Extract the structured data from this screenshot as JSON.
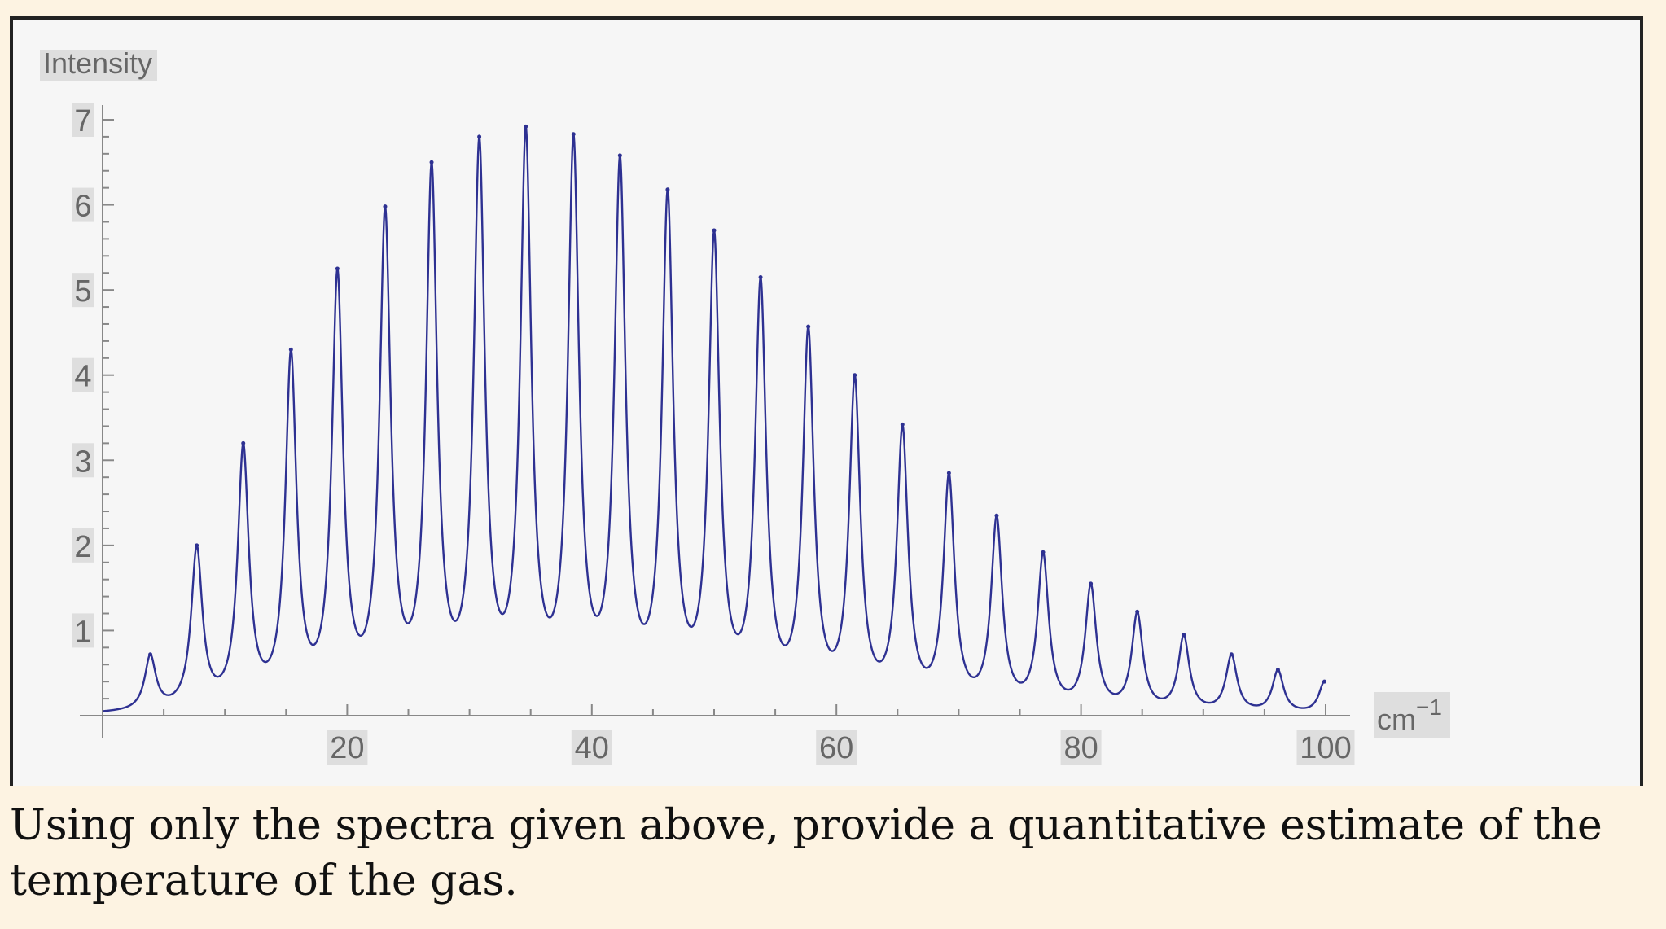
{
  "caption": "Using only the spectra given above, provide a quantitative estimate of the temperature of the gas.",
  "chart_data": {
    "type": "line",
    "ylabel": "Intensity",
    "xlabel_base": "cm",
    "xlabel_exp": "−1",
    "xlim": [
      0,
      100
    ],
    "ylim": [
      0,
      7
    ],
    "xticks": [
      20,
      40,
      60,
      80,
      100
    ],
    "yticks": [
      1,
      2,
      3,
      4,
      5,
      6,
      7
    ],
    "line_color": "#2e3192",
    "peaks": [
      {
        "x": 3.9,
        "y": 0.72
      },
      {
        "x": 7.7,
        "y": 2.0
      },
      {
        "x": 11.5,
        "y": 3.2
      },
      {
        "x": 15.4,
        "y": 4.3
      },
      {
        "x": 19.2,
        "y": 5.25
      },
      {
        "x": 23.1,
        "y": 5.98
      },
      {
        "x": 26.9,
        "y": 6.5
      },
      {
        "x": 30.8,
        "y": 6.8
      },
      {
        "x": 34.6,
        "y": 6.92
      },
      {
        "x": 38.5,
        "y": 6.83
      },
      {
        "x": 42.3,
        "y": 6.58
      },
      {
        "x": 46.2,
        "y": 6.18
      },
      {
        "x": 50.0,
        "y": 5.7
      },
      {
        "x": 53.8,
        "y": 5.15
      },
      {
        "x": 57.7,
        "y": 4.57
      },
      {
        "x": 61.5,
        "y": 4.0
      },
      {
        "x": 65.4,
        "y": 3.42
      },
      {
        "x": 69.2,
        "y": 2.85
      },
      {
        "x": 73.1,
        "y": 2.35
      },
      {
        "x": 76.9,
        "y": 1.92
      },
      {
        "x": 80.8,
        "y": 1.55
      },
      {
        "x": 84.6,
        "y": 1.22
      },
      {
        "x": 88.4,
        "y": 0.95
      },
      {
        "x": 92.3,
        "y": 0.72
      },
      {
        "x": 96.1,
        "y": 0.54
      },
      {
        "x": 99.9,
        "y": 0.4
      }
    ]
  }
}
